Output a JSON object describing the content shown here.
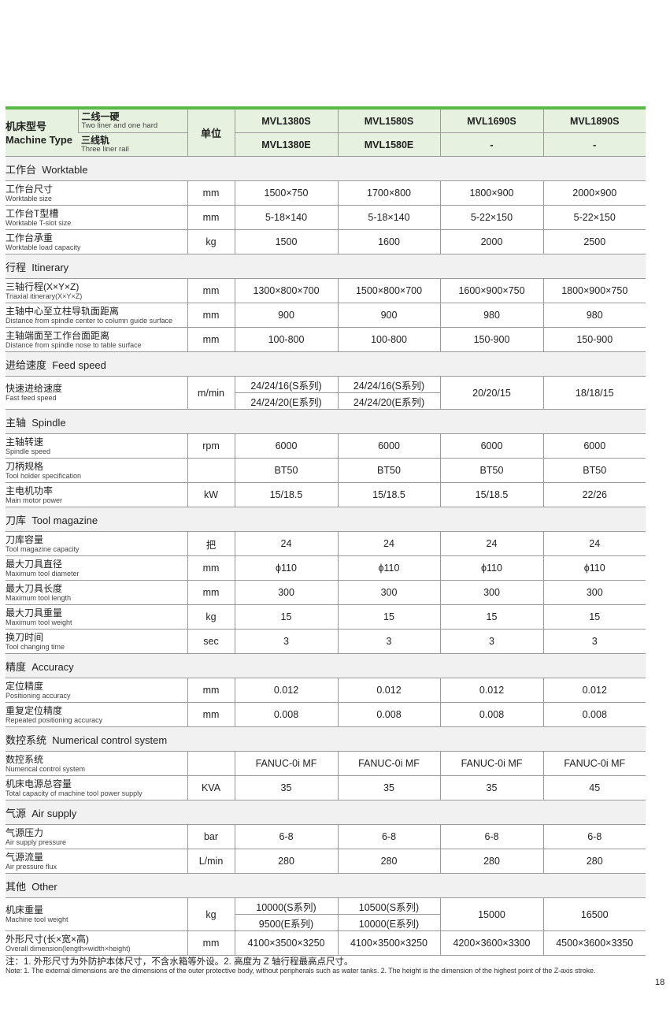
{
  "header": {
    "machine_type_zh": "机床型号",
    "machine_type_en": "Machine Type",
    "s_zh": "二线一硬",
    "s_en": "Two liner and one hard",
    "e_zh": "三线轨",
    "e_en": "Three liner rail",
    "unit": "单位",
    "s_models": [
      "MVL1380S",
      "MVL1580S",
      "MVL1690S",
      "MVL1890S"
    ],
    "e_models": [
      "MVL1380E",
      "MVL1580E",
      "-",
      "-"
    ]
  },
  "sections": [
    {
      "title": "工作台  Worktable",
      "rows": [
        {
          "zh": "工作台尺寸",
          "en": "Worktable size",
          "unit": "mm",
          "values": [
            "1500×750",
            "1700×800",
            "1800×900",
            "2000×900"
          ]
        },
        {
          "zh": "工作台T型槽",
          "en": "Worktable T-slot size",
          "unit": "mm",
          "values": [
            "5-18×140",
            "5-18×140",
            "5-22×150",
            "5-22×150"
          ]
        },
        {
          "zh": "工作台承重",
          "en": "Worktable load capacity",
          "unit": "kg",
          "values": [
            "1500",
            "1600",
            "2000",
            "2500"
          ]
        }
      ]
    },
    {
      "title": "行程  Itinerary",
      "rows": [
        {
          "zh": "三轴行程(X×Y×Z)",
          "en": "Triaxial itinerary(X×Y×Z)",
          "unit": "mm",
          "values": [
            "1300×800×700",
            "1500×800×700",
            "1600×900×750",
            "1800×900×750"
          ]
        },
        {
          "zh": "主轴中心至立柱导轨面距离",
          "en": "Distance from spindle center to column guide surface",
          "unit": "mm",
          "values": [
            "900",
            "900",
            "980",
            "980"
          ]
        },
        {
          "zh": "主轴端面至工作台面距离",
          "en": "Distance from spindle nose to table surface",
          "unit": "mm",
          "values": [
            "100-800",
            "100-800",
            "150-900",
            "150-900"
          ]
        }
      ]
    },
    {
      "title": "进给速度  Feed speed",
      "rows": [
        {
          "zh": "快速进给速度",
          "en": "Fast feed speed",
          "unit": "m/min",
          "values": [
            [
              "24/24/16(S系列)",
              "24/24/20(E系列)"
            ],
            [
              "24/24/16(S系列)",
              "24/24/20(E系列)"
            ],
            "20/20/15",
            "18/18/15"
          ]
        }
      ]
    },
    {
      "title": "主轴  Spindle",
      "rows": [
        {
          "zh": "主轴转速",
          "en": "Spindle speed",
          "unit": "rpm",
          "values": [
            "6000",
            "6000",
            "6000",
            "6000"
          ]
        },
        {
          "zh": "刀柄规格",
          "en": "Tool holder specification",
          "unit": "",
          "values": [
            "BT50",
            "BT50",
            "BT50",
            "BT50"
          ]
        },
        {
          "zh": "主电机功率",
          "en": "Main motor power",
          "unit": "kW",
          "values": [
            "15/18.5",
            "15/18.5",
            "15/18.5",
            "22/26"
          ]
        }
      ]
    },
    {
      "title": "刀库  Tool magazine",
      "rows": [
        {
          "zh": "刀库容量",
          "en": "Tool magazine capacity",
          "unit": "把",
          "values": [
            "24",
            "24",
            "24",
            "24"
          ]
        },
        {
          "zh": "最大刀具直径",
          "en": "Maximum tool diameter",
          "unit": "mm",
          "values": [
            "ϕ110",
            "ϕ110",
            "ϕ110",
            "ϕ110"
          ]
        },
        {
          "zh": "最大刀具长度",
          "en": "Maximum tool length",
          "unit": "mm",
          "values": [
            "300",
            "300",
            "300",
            "300"
          ]
        },
        {
          "zh": "最大刀具重量",
          "en": "Maximum tool weight",
          "unit": "kg",
          "values": [
            "15",
            "15",
            "15",
            "15"
          ]
        },
        {
          "zh": "换刀时间",
          "en": "Tool changing time",
          "unit": "sec",
          "values": [
            "3",
            "3",
            "3",
            "3"
          ]
        }
      ]
    },
    {
      "title": "精度  Accuracy",
      "rows": [
        {
          "zh": "定位精度",
          "en": "Positioning accuracy",
          "unit": "mm",
          "values": [
            "0.012",
            "0.012",
            "0.012",
            "0.012"
          ]
        },
        {
          "zh": "重复定位精度",
          "en": "Repeated positioning accuracy",
          "unit": "mm",
          "values": [
            "0.008",
            "0.008",
            "0.008",
            "0.008"
          ]
        }
      ]
    },
    {
      "title": "数控系统  Numerical control system",
      "rows": [
        {
          "zh": "数控系统",
          "en": "Numerical control system",
          "unit": "",
          "values": [
            "FANUC-0i MF",
            "FANUC-0i MF",
            "FANUC-0i MF",
            "FANUC-0i MF"
          ]
        },
        {
          "zh": "机床电源总容量",
          "en": "Total capacity of machine tool power supply",
          "unit": "KVA",
          "values": [
            "35",
            "35",
            "35",
            "45"
          ]
        }
      ]
    },
    {
      "title": "气源  Air supply",
      "rows": [
        {
          "zh": "气源压力",
          "en": "Air supply pressure",
          "unit": "bar",
          "values": [
            "6-8",
            "6-8",
            "6-8",
            "6-8"
          ]
        },
        {
          "zh": "气源流量",
          "en": "Air pressure flux",
          "unit": "L/min",
          "values": [
            "280",
            "280",
            "280",
            "280"
          ]
        }
      ]
    },
    {
      "title": "其他  Other",
      "rows": [
        {
          "zh": "机床重量",
          "en": "Machine tool weight",
          "unit": "kg",
          "values": [
            [
              "10000(S系列)",
              "9500(E系列)"
            ],
            [
              "10500(S系列)",
              "10000(E系列)"
            ],
            "15000",
            "16500"
          ]
        },
        {
          "zh": "外形尺寸(长×宽×高)",
          "en": "Overall dimension(length×width×height)",
          "unit": "mm",
          "values": [
            "4100×3500×3250",
            "4100×3500×3250",
            "4200×3600×3300",
            "4500×3600×3350"
          ]
        }
      ]
    }
  ],
  "notes": {
    "zh": "注：1. 外形尺寸为外防护本体尺寸，不含水箱等外设。2. 高度为 Z 轴行程最高点尺寸。",
    "en": "Note: 1. The external dimensions are the dimensions of the outer protective body, without peripherals such as water tanks. 2. The height is the dimension of the highest point of the Z-axis stroke."
  },
  "page_number": "18",
  "colors": {
    "accent": "#58b947",
    "header_bg": "#e6f2df",
    "section_bg": "#f1f1f1"
  }
}
